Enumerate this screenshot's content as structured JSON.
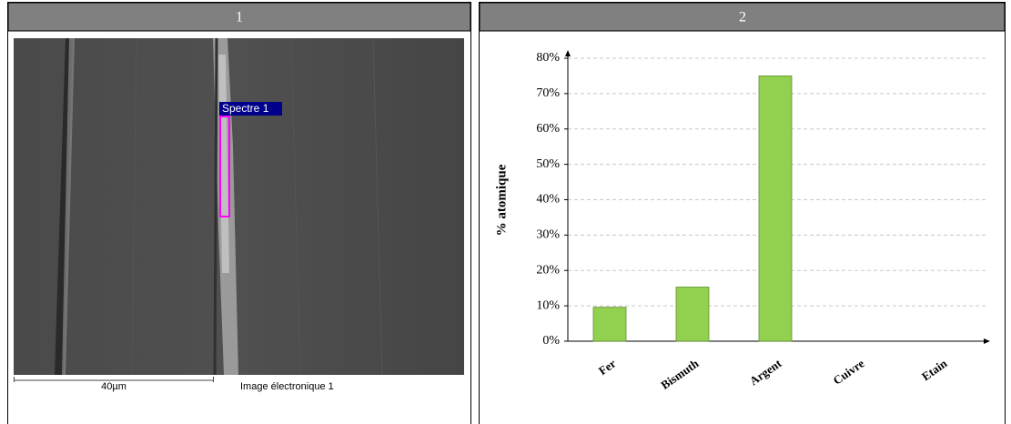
{
  "panels": [
    {
      "header": "1",
      "image": {
        "label": "Spectre  1",
        "scale": "40µm",
        "caption": "Image électronique 1"
      }
    },
    {
      "header": "2"
    }
  ],
  "chart_data": {
    "type": "bar",
    "ylabel": "% atomique",
    "categories": [
      "Fer",
      "Bismuth",
      "Argent",
      "Cuivre",
      "Etain"
    ],
    "values": [
      9.6,
      15.3,
      75,
      0,
      0
    ],
    "color": "#92d050",
    "ylim": [
      0,
      80
    ],
    "yticks": [
      {
        "value": 0,
        "label": "0%"
      },
      {
        "value": 10,
        "label": "10%"
      },
      {
        "value": 20,
        "label": "20%"
      },
      {
        "value": 30,
        "label": "30%"
      },
      {
        "value": 40,
        "label": "40%"
      },
      {
        "value": 50,
        "label": "50%"
      },
      {
        "value": 60,
        "label": "60%"
      },
      {
        "value": 70,
        "label": "70%"
      },
      {
        "value": 80,
        "label": "80%"
      }
    ],
    "grid": true
  }
}
